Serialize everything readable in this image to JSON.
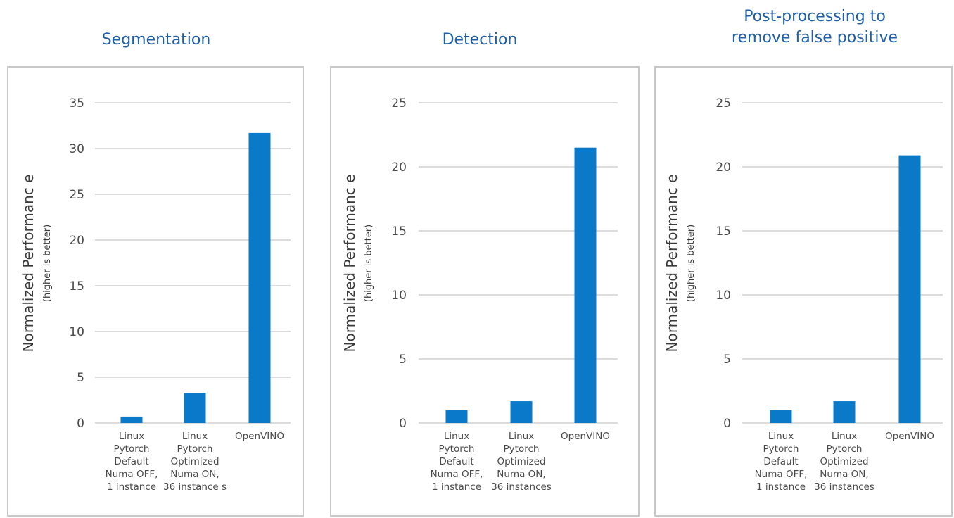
{
  "chart_data": [
    {
      "type": "bar",
      "title": "Segmentation",
      "ylabel": "Normalized Performanc e",
      "ylabel_sub": "(higher is better)",
      "ylim": [
        0,
        35
      ],
      "yticks": [
        0,
        5,
        10,
        15,
        20,
        25,
        30,
        35
      ],
      "grid": true,
      "categories": [
        [
          "Linux",
          "Pytorch",
          "Default",
          "Numa OFF,",
          "1 instance"
        ],
        [
          "Linux",
          "Pytorch",
          "Optimized",
          "Numa ON,",
          "36 instance s"
        ],
        [
          "OpenVINO"
        ]
      ],
      "values": [
        0.7,
        3.3,
        31.7
      ],
      "color": "#0a7ac8"
    },
    {
      "type": "bar",
      "title": "Detection",
      "ylabel": "Normalized Performanc e",
      "ylabel_sub": "(higher is better)",
      "ylim": [
        0,
        25
      ],
      "yticks": [
        0,
        5,
        10,
        15,
        20,
        25
      ],
      "grid": true,
      "categories": [
        [
          "Linux",
          "Pytorch",
          "Default",
          "Numa OFF,",
          "1 instance"
        ],
        [
          "Linux",
          "Pytorch",
          "Optimized",
          "Numa ON,",
          "36 instances"
        ],
        [
          "OpenVINO"
        ]
      ],
      "values": [
        1.0,
        1.7,
        21.5
      ],
      "color": "#0a7ac8"
    },
    {
      "type": "bar",
      "title": "Post-processing to\nremove false positive",
      "ylabel": "Normalized Performanc e",
      "ylabel_sub": "(higher is better)",
      "ylim": [
        0,
        25
      ],
      "yticks": [
        0,
        5,
        10,
        15,
        20,
        25
      ],
      "grid": true,
      "categories": [
        [
          "Linux",
          "Pytorch",
          "Default",
          "Numa OFF,",
          "1 instance"
        ],
        [
          "Linux",
          "Pytorch",
          "Optimized",
          "Numa ON,",
          "36 instances"
        ],
        [
          "OpenVINO"
        ]
      ],
      "values": [
        1.0,
        1.7,
        20.9
      ],
      "color": "#0a7ac8"
    }
  ]
}
